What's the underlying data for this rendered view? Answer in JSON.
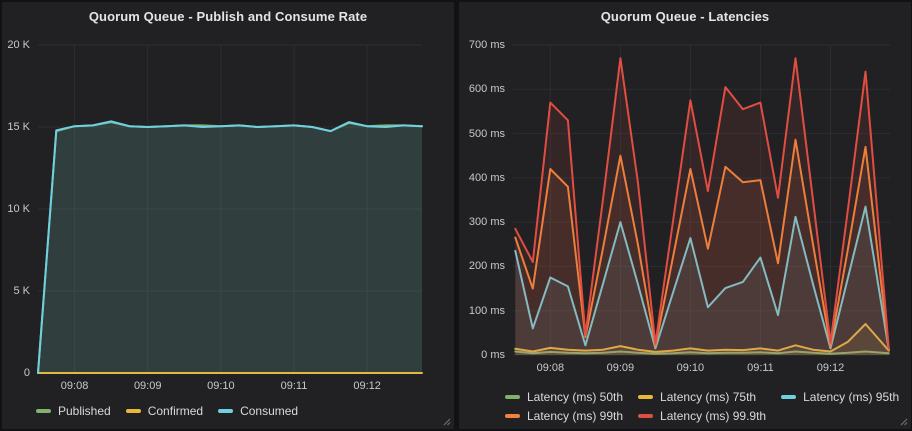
{
  "theme": {
    "page_bg": "#101214",
    "panel_bg": "#212124",
    "grid_color": "#2b2e32",
    "title_color": "#e3e4e6",
    "tick_color": "#c8c9cb",
    "legend_text_color": "#d8d9da",
    "series_palette": [
      "#7EB26D",
      "#EAB839",
      "#6ED0E0",
      "#EF843C",
      "#E24D42"
    ]
  },
  "chart_data": [
    {
      "type": "area",
      "title": "Quorum Queue - Publish and Consume Rate",
      "xlabel": "",
      "ylabel": "",
      "ylim": [
        0,
        20000
      ],
      "grid": true,
      "legend_position": "bottom",
      "x_domain": [
        "09:07:30",
        "09:12:45"
      ],
      "x_times": [
        "09:07:30",
        "09:07:45",
        "09:08:00",
        "09:08:15",
        "09:08:30",
        "09:08:45",
        "09:09:00",
        "09:09:15",
        "09:09:30",
        "09:09:45",
        "09:10:00",
        "09:10:15",
        "09:10:30",
        "09:10:45",
        "09:11:00",
        "09:11:15",
        "09:11:30",
        "09:11:45",
        "09:12:00",
        "09:12:15",
        "09:12:30",
        "09:12:45"
      ],
      "xticks": [
        {
          "t": "09:08:00",
          "label": "09:08"
        },
        {
          "t": "09:09:00",
          "label": "09:09"
        },
        {
          "t": "09:10:00",
          "label": "09:10"
        },
        {
          "t": "09:11:00",
          "label": "09:11"
        },
        {
          "t": "09:12:00",
          "label": "09:12"
        }
      ],
      "yticks": [
        {
          "v": 0,
          "label": "0"
        },
        {
          "v": 5000,
          "label": "5 K"
        },
        {
          "v": 10000,
          "label": "10 K"
        },
        {
          "v": 15000,
          "label": "15 K"
        },
        {
          "v": 20000,
          "label": "20 K"
        }
      ],
      "series": [
        {
          "name": "Published",
          "color": "#7EB26D",
          "values": [
            0,
            14750,
            15050,
            15100,
            15300,
            15050,
            15000,
            15050,
            15100,
            15100,
            15050,
            15100,
            15000,
            15050,
            15100,
            15000,
            14750,
            15250,
            15050,
            15100,
            15100,
            15050
          ]
        },
        {
          "name": "Confirmed",
          "color": "#EAB839",
          "values": [
            0,
            0,
            0,
            0,
            0,
            0,
            0,
            0,
            0,
            0,
            0,
            0,
            0,
            0,
            0,
            0,
            0,
            0,
            0,
            0,
            0,
            0
          ]
        },
        {
          "name": "Consumed",
          "color": "#6ED0E0",
          "values": [
            0,
            14800,
            15050,
            15100,
            15350,
            15050,
            15000,
            15050,
            15100,
            15000,
            15050,
            15100,
            15000,
            15050,
            15100,
            15000,
            14750,
            15300,
            15050,
            15000,
            15100,
            15050
          ]
        }
      ]
    },
    {
      "type": "line",
      "title": "Quorum Queue - Latencies",
      "xlabel": "",
      "ylabel": "",
      "ylim": [
        0,
        700
      ],
      "grid": true,
      "legend_position": "bottom",
      "x_domain": [
        "09:07:28",
        "09:12:51"
      ],
      "x_times": [
        "09:07:30",
        "09:07:45",
        "09:08:00",
        "09:08:15",
        "09:08:30",
        "09:08:45",
        "09:09:00",
        "09:09:15",
        "09:09:30",
        "09:09:45",
        "09:10:00",
        "09:10:15",
        "09:10:30",
        "09:10:45",
        "09:11:00",
        "09:11:15",
        "09:11:30",
        "09:11:45",
        "09:12:00",
        "09:12:15",
        "09:12:30",
        "09:12:50"
      ],
      "xticks": [
        {
          "t": "09:08:00",
          "label": "09:08"
        },
        {
          "t": "09:09:00",
          "label": "09:09"
        },
        {
          "t": "09:10:00",
          "label": "09:10"
        },
        {
          "t": "09:11:00",
          "label": "09:11"
        },
        {
          "t": "09:12:00",
          "label": "09:12"
        }
      ],
      "yticks": [
        {
          "v": 0,
          "label": "0 ms"
        },
        {
          "v": 100,
          "label": "100 ms"
        },
        {
          "v": 200,
          "label": "200 ms"
        },
        {
          "v": 300,
          "label": "300 ms"
        },
        {
          "v": 400,
          "label": "400 ms"
        },
        {
          "v": 500,
          "label": "500 ms"
        },
        {
          "v": 600,
          "label": "600 ms"
        },
        {
          "v": 700,
          "label": "700 ms"
        }
      ],
      "series": [
        {
          "name": "Latency (ms) 50th",
          "color": "#7EB26D",
          "values": [
            8,
            4,
            7,
            5,
            4,
            5,
            8,
            5,
            3,
            4,
            6,
            4,
            5,
            5,
            6,
            4,
            8,
            5,
            3,
            5,
            8,
            4
          ]
        },
        {
          "name": "Latency (ms) 75th",
          "color": "#EAB839",
          "values": [
            14,
            8,
            16,
            12,
            10,
            12,
            20,
            12,
            7,
            10,
            15,
            10,
            12,
            11,
            15,
            10,
            22,
            12,
            8,
            30,
            70,
            10
          ]
        },
        {
          "name": "Latency (ms) 95th",
          "color": "#6ED0E0",
          "values": [
            235,
            60,
            175,
            155,
            22,
            160,
            300,
            160,
            15,
            140,
            264,
            108,
            151,
            165,
            220,
            90,
            312,
            160,
            15,
            175,
            335,
            12
          ]
        },
        {
          "name": "Latency (ms) 99th",
          "color": "#EF843C",
          "values": [
            265,
            150,
            420,
            380,
            40,
            240,
            450,
            250,
            20,
            220,
            420,
            240,
            425,
            390,
            395,
            207,
            486,
            250,
            20,
            240,
            470,
            12
          ]
        },
        {
          "name": "Latency (ms) 99.9th",
          "color": "#E24D42",
          "values": [
            285,
            210,
            570,
            530,
            45,
            350,
            670,
            390,
            25,
            300,
            575,
            370,
            605,
            555,
            570,
            355,
            670,
            350,
            28,
            330,
            640,
            15
          ]
        }
      ]
    }
  ]
}
